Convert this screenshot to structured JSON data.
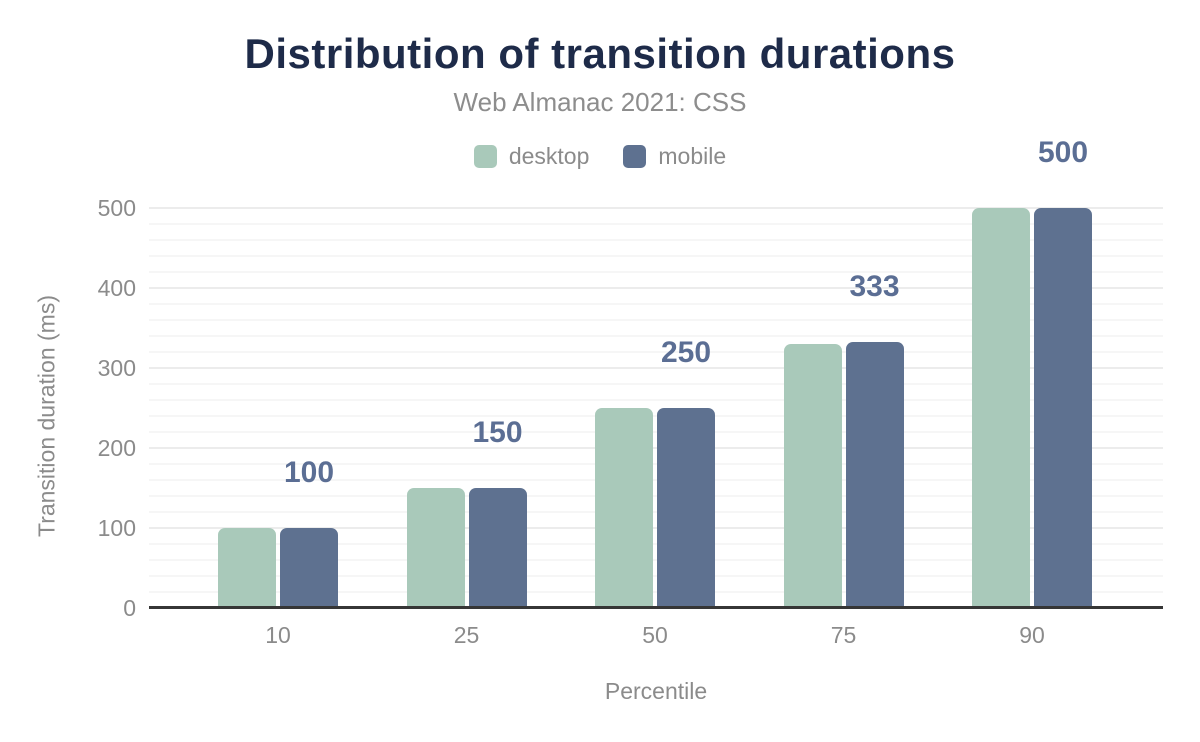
{
  "title": "Distribution of transition durations",
  "subtitle": "Web Almanac 2021: CSS",
  "colors": {
    "title_navy": "#1e2b49",
    "muted_gray": "#8b8b8b",
    "desktop_green": "#a9c9ba",
    "mobile_slate": "#5e7190",
    "data_label_slate": "#5b6e94",
    "axis_line": "#363636",
    "grid_major": "#ececec",
    "grid_minor": "#f6f6f6"
  },
  "chart_data": {
    "type": "bar",
    "title": "Distribution of transition durations",
    "subtitle": "Web Almanac 2021: CSS",
    "categories": [
      "10",
      "25",
      "50",
      "75",
      "90"
    ],
    "series": [
      {
        "name": "desktop",
        "color": "#a9c9ba",
        "values": [
          100,
          150,
          250,
          330,
          500
        ]
      },
      {
        "name": "mobile",
        "color": "#5e7190",
        "values": [
          100,
          150,
          250,
          333,
          500
        ]
      }
    ],
    "data_labels": [
      "100",
      "150",
      "250",
      "333",
      "500"
    ],
    "xlabel": "Percentile",
    "ylabel": "Transition duration (ms)",
    "ylim": [
      0,
      500
    ],
    "ytick_step": 100,
    "minor_grid_step": 20,
    "grid": true,
    "legend_position": "top-center"
  },
  "axes": {
    "yticks": [
      "0",
      "100",
      "200",
      "300",
      "400",
      "500"
    ],
    "xticks": [
      "10",
      "25",
      "50",
      "75",
      "90"
    ]
  }
}
